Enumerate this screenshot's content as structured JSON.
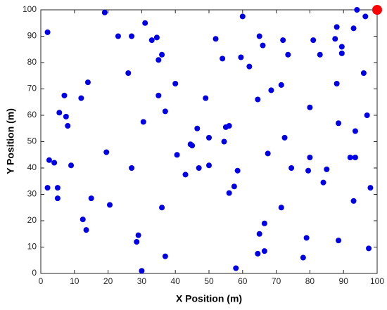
{
  "chart_data": {
    "type": "scatter",
    "x_label": "X Position (m)",
    "y_label": "Y Position (m)",
    "xlim": [
      0,
      100
    ],
    "ylim": [
      0,
      100
    ],
    "xticks": [
      0,
      10,
      20,
      30,
      40,
      50,
      60,
      70,
      80,
      90,
      100
    ],
    "yticks": [
      0,
      10,
      20,
      30,
      40,
      50,
      60,
      70,
      80,
      90,
      100
    ],
    "series": [
      {
        "color": "#0000e6",
        "size": 4,
        "x": [
          2,
          19,
          23,
          27,
          31,
          33,
          34.5,
          35,
          36,
          26,
          7,
          7.5,
          5.5,
          8,
          12,
          14,
          2.5,
          4,
          9,
          2,
          5,
          5,
          15,
          12.5,
          13.5,
          19.5,
          20.5,
          27,
          30.5,
          35,
          37,
          40,
          40.5,
          36,
          29,
          28.5,
          30,
          37,
          43,
          44.5,
          45,
          46.5,
          47,
          49,
          50,
          50,
          52,
          54,
          54.5,
          55,
          56,
          56,
          57.5,
          58.5,
          58,
          59.5,
          60,
          62,
          64.5,
          65,
          66,
          67.5,
          68.5,
          64.5,
          65,
          66.5,
          66.5,
          71.5,
          72,
          73.5,
          72.5,
          74.5,
          71.5,
          78,
          79,
          79.5,
          80,
          80,
          81,
          83,
          84,
          85,
          87.5,
          88,
          88,
          88.5,
          88.5,
          89.5,
          89.5,
          93,
          94,
          96.5,
          96,
          97,
          93.5,
          92,
          93.5,
          93,
          97.5,
          98
        ],
        "y": [
          91.5,
          99,
          90,
          90,
          95,
          88.5,
          89.5,
          81,
          83,
          76,
          67.5,
          59.5,
          61,
          56,
          66.5,
          72.5,
          43,
          42,
          41,
          32.5,
          32.5,
          28.5,
          28.5,
          20.5,
          16.5,
          46,
          26,
          40,
          57.5,
          67.5,
          61.5,
          72,
          45,
          25,
          14.5,
          12,
          1,
          6.5,
          37.5,
          49,
          48.5,
          55,
          40,
          66.5,
          51.5,
          41,
          89,
          81.5,
          50,
          55.5,
          56,
          30.5,
          33,
          39,
          2,
          82,
          97.5,
          78.5,
          66,
          90,
          86.5,
          45.5,
          69.5,
          7.5,
          15,
          19,
          8.5,
          71.5,
          88.5,
          83,
          51.5,
          40,
          25,
          6,
          13.5,
          39,
          44,
          63,
          88.5,
          83,
          34.5,
          39.5,
          89,
          93.5,
          72,
          57,
          12.5,
          86,
          83.5,
          93,
          100,
          97.5,
          76,
          60,
          54,
          44,
          44,
          27.5,
          9.5,
          32.5
        ]
      },
      {
        "color": "#ff0000",
        "size": 7,
        "x": [
          100
        ],
        "y": [
          100
        ]
      }
    ]
  }
}
